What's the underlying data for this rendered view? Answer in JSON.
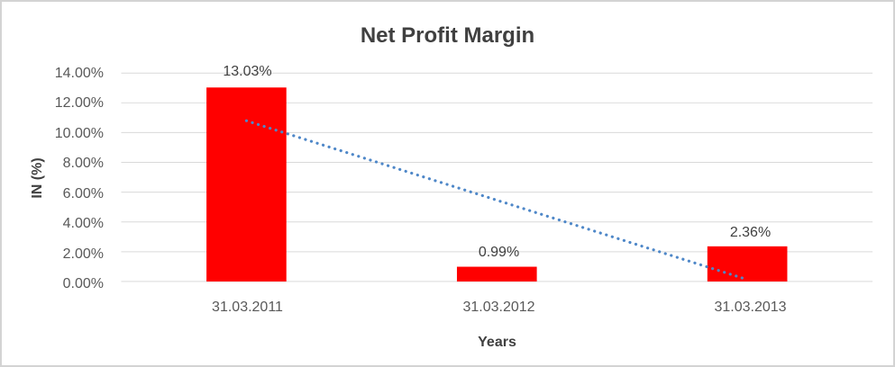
{
  "figure": {
    "background": "#ffffff",
    "border_color": "#d3d3d3"
  },
  "chart_data": {
    "type": "bar",
    "title": "Net Profit Margin",
    "categories": [
      "31.03.2011",
      "31.03.2012",
      "31.03.2013"
    ],
    "values": [
      13.03,
      0.99,
      2.36
    ],
    "data_labels": [
      "13.03%",
      "0.99%",
      "2.36%"
    ],
    "xlabel": "Years",
    "ylabel": "IN (%)",
    "ylim": [
      0,
      14
    ],
    "ytick_step": 2,
    "ytick_labels": [
      "0.00%",
      "2.00%",
      "4.00%",
      "6.00%",
      "8.00%",
      "10.00%",
      "12.00%",
      "14.00%"
    ],
    "grid": true,
    "legend": "none",
    "trendline": {
      "type": "linear",
      "style": "dotted"
    },
    "colors": {
      "bar": "#ff0000",
      "trendline": "#4e87c8",
      "gridline": "#d9d9d9",
      "tick_label": "#595959",
      "title": "#404040",
      "axis_title": "#404040",
      "data_label": "#404040"
    }
  }
}
